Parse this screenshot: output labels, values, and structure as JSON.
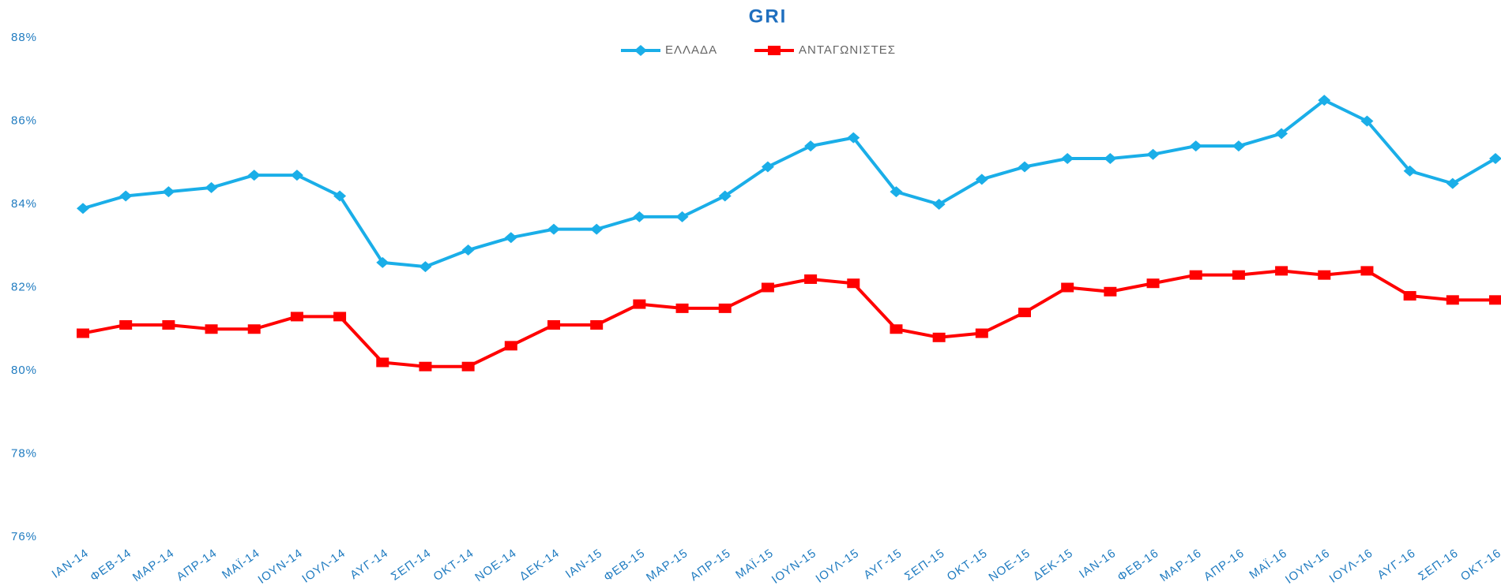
{
  "chart_data": {
    "type": "line",
    "title": "GRI",
    "categories": [
      "ΙΑΝ-14",
      "ΦΕΒ-14",
      "ΜΑΡ-14",
      "ΑΠΡ-14",
      "ΜΑΪ-14",
      "ΙΟΥΝ-14",
      "ΙΟΥΛ-14",
      "ΑΥΓ-14",
      "ΣΕΠ-14",
      "ΟΚΤ-14",
      "ΝΟΕ-14",
      "ΔΕΚ-14",
      "ΙΑΝ-15",
      "ΦΕΒ-15",
      "ΜΑΡ-15",
      "ΑΠΡ-15",
      "ΜΑΪ-15",
      "ΙΟΥΝ-15",
      "ΙΟΥΛ-15",
      "ΑΥΓ-15",
      "ΣΕΠ-15",
      "ΟΚΤ-15",
      "ΝΟΕ-15",
      "ΔΕΚ-15",
      "ΙΑΝ-16",
      "ΦΕΒ-16",
      "ΜΑΡ-16",
      "ΑΠΡ-16",
      "ΜΑΪ-16",
      "ΙΟΥΝ-16",
      "ΙΟΥΛ-16",
      "ΑΥΓ-16",
      "ΣΕΠ-16",
      "ΟΚΤ-16"
    ],
    "series": [
      {
        "name": "ΕΛΛΑΔΑ",
        "color": "#1aaee8",
        "marker": "diamond",
        "values": [
          83.9,
          84.2,
          84.3,
          84.4,
          84.7,
          84.7,
          84.2,
          82.6,
          82.5,
          82.9,
          83.2,
          83.4,
          83.4,
          83.7,
          83.7,
          84.2,
          84.9,
          85.4,
          85.6,
          84.3,
          84.0,
          84.6,
          84.9,
          85.1,
          85.1,
          85.2,
          85.4,
          85.4,
          85.7,
          86.5,
          86.0,
          84.8,
          84.5,
          85.1
        ]
      },
      {
        "name": "ΑΝΤΑΓΩΝΙΣΤΕΣ",
        "color": "#ff0000",
        "marker": "square",
        "values": [
          80.9,
          81.1,
          81.1,
          81.0,
          81.0,
          81.3,
          81.3,
          80.2,
          80.1,
          80.1,
          80.6,
          81.1,
          81.1,
          81.6,
          81.5,
          81.5,
          82.0,
          82.2,
          82.1,
          81.0,
          80.8,
          80.9,
          81.4,
          82.0,
          81.9,
          82.1,
          82.3,
          82.3,
          82.4,
          82.3,
          82.4,
          81.8,
          81.7,
          81.7
        ]
      }
    ],
    "ylim": [
      76,
      88
    ],
    "yticks": [
      {
        "value": 76,
        "label": "76%"
      },
      {
        "value": 78,
        "label": "78%"
      },
      {
        "value": 80,
        "label": "80%"
      },
      {
        "value": 82,
        "label": "82%"
      },
      {
        "value": 84,
        "label": "84%"
      },
      {
        "value": 86,
        "label": "86%"
      },
      {
        "value": 88,
        "label": "88%"
      }
    ],
    "grid": false,
    "legend": "top"
  }
}
